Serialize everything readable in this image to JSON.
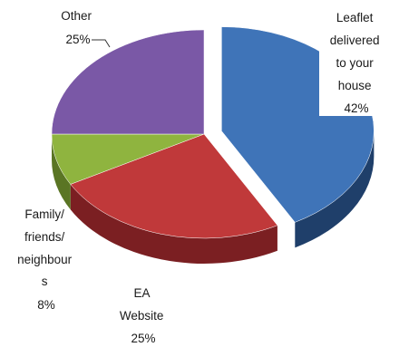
{
  "chart_data": {
    "type": "pie",
    "style": "3d-exploded",
    "slices": [
      {
        "label_lines": [
          "Leaflet",
          "delivered",
          "to your",
          "house"
        ],
        "value": 42,
        "percent_label": "42%",
        "color": "#3f74b8",
        "side_color": "#1f3f6a"
      },
      {
        "label_lines": [
          "EA",
          "Website"
        ],
        "value": 25,
        "percent_label": "25%",
        "color": "#c0393a",
        "side_color": "#7b1f22"
      },
      {
        "label_lines": [
          "Family/",
          "friends/",
          "neighbour",
          "s"
        ],
        "value": 8,
        "percent_label": "8%",
        "color": "#8fb43f",
        "side_color": "#5a7524"
      },
      {
        "label_lines": [
          "Other"
        ],
        "value": 25,
        "percent_label": "25%",
        "color": "#7a58a6",
        "side_color": "#4d3670"
      }
    ]
  }
}
